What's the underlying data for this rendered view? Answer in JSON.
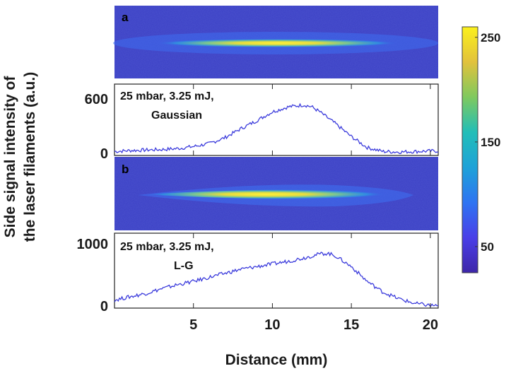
{
  "chart_data": {
    "type": "line",
    "xlabel": "Distance (mm)",
    "ylabel_lines": [
      "Side signal intensity of",
      "the laser filaments (a.u.)"
    ],
    "x_ticks": [
      5,
      10,
      15,
      20
    ],
    "xlim": [
      0,
      20.5
    ],
    "colorbar": {
      "ticks": [
        50,
        150,
        250
      ],
      "range": [
        25,
        260
      ],
      "colors": [
        "#3d26a8",
        "#4a3fe8",
        "#2e74f2",
        "#1ea2d8",
        "#22beb8",
        "#7fc95e",
        "#e2c23c",
        "#fbf01c"
      ]
    },
    "line_color": "#3b3bdc",
    "panels": [
      {
        "label": "a",
        "annotation": [
          "25 mbar, 3.25 mJ,",
          "Gaussian"
        ],
        "y_ticks": [
          0,
          600
        ],
        "ylim": [
          -20,
          700
        ],
        "image_beam": {
          "peak_x": 11.5,
          "sigma": 3.2,
          "band_center": 0.55
        },
        "series": {
          "x": [
            0,
            1,
            2,
            3,
            4,
            5,
            6,
            7,
            8,
            9,
            10,
            11,
            12,
            12.5,
            13,
            14,
            15,
            16,
            17,
            18,
            19,
            20,
            20.5
          ],
          "y": [
            20,
            30,
            35,
            40,
            50,
            70,
            100,
            160,
            250,
            330,
            420,
            470,
            490,
            470,
            420,
            300,
            170,
            60,
            20,
            15,
            20,
            25,
            25
          ]
        }
      },
      {
        "label": "b",
        "annotation": [
          "25 mbar, 3.25 mJ,",
          "L-G"
        ],
        "y_ticks": [
          0,
          1000
        ],
        "ylim": [
          -20,
          1100
        ],
        "image_beam": {
          "start_x": 1.5,
          "peak_x": 13.5,
          "end_x": 19,
          "band_center": 0.52
        },
        "series": {
          "x": [
            0,
            1,
            2,
            3,
            4,
            5,
            6,
            7,
            8,
            9,
            10,
            11,
            12,
            13,
            13.5,
            14,
            15,
            16,
            17,
            18,
            19,
            20,
            20.5
          ],
          "y": [
            100,
            150,
            200,
            270,
            330,
            380,
            440,
            500,
            560,
            600,
            640,
            680,
            730,
            790,
            800,
            760,
            600,
            380,
            220,
            120,
            50,
            20,
            20
          ]
        }
      }
    ]
  }
}
